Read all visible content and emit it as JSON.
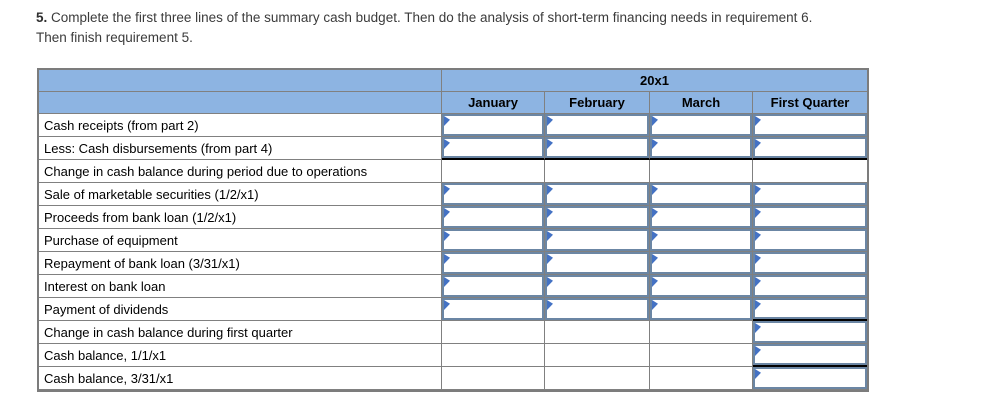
{
  "instruction": {
    "prefix": "5.",
    "line1": "Complete the first three lines of the summary cash budget. Then do the analysis of short-term financing needs in requirement 6.",
    "line2": "Then finish requirement 5."
  },
  "table": {
    "year_header": "20x1",
    "columns": [
      {
        "label": "January"
      },
      {
        "label": "February"
      },
      {
        "label": "March"
      },
      {
        "label": "First Quarter"
      }
    ],
    "rows": [
      {
        "label": "Cash receipts (from part 2)",
        "cells": [
          {
            "type": "input",
            "value": ""
          },
          {
            "type": "input",
            "value": ""
          },
          {
            "type": "input",
            "value": ""
          },
          {
            "type": "input",
            "value": ""
          }
        ]
      },
      {
        "label": "Less: Cash disbursements (from part 4)",
        "cells": [
          {
            "type": "input",
            "value": "",
            "rule_below": true
          },
          {
            "type": "input",
            "value": "",
            "rule_below": true
          },
          {
            "type": "input",
            "value": "",
            "rule_below": true
          },
          {
            "type": "input",
            "value": "",
            "rule_below": true
          }
        ]
      },
      {
        "label": "Change in cash balance during period due to operations",
        "cells": [
          {
            "type": "plain"
          },
          {
            "type": "plain"
          },
          {
            "type": "plain"
          },
          {
            "type": "plain"
          }
        ]
      },
      {
        "label": "Sale of marketable securities (1/2/x1)",
        "cells": [
          {
            "type": "input",
            "value": ""
          },
          {
            "type": "input",
            "value": ""
          },
          {
            "type": "input",
            "value": ""
          },
          {
            "type": "input",
            "value": ""
          }
        ]
      },
      {
        "label": "Proceeds from bank loan (1/2/x1)",
        "cells": [
          {
            "type": "input",
            "value": ""
          },
          {
            "type": "input",
            "value": ""
          },
          {
            "type": "input",
            "value": ""
          },
          {
            "type": "input",
            "value": ""
          }
        ]
      },
      {
        "label": "Purchase of equipment",
        "cells": [
          {
            "type": "input",
            "value": ""
          },
          {
            "type": "input",
            "value": ""
          },
          {
            "type": "input",
            "value": ""
          },
          {
            "type": "input",
            "value": ""
          }
        ]
      },
      {
        "label": "Repayment of bank loan (3/31/x1)",
        "cells": [
          {
            "type": "input",
            "value": ""
          },
          {
            "type": "input",
            "value": ""
          },
          {
            "type": "input",
            "value": ""
          },
          {
            "type": "input",
            "value": ""
          }
        ]
      },
      {
        "label": "Interest on bank loan",
        "cells": [
          {
            "type": "input",
            "value": ""
          },
          {
            "type": "input",
            "value": ""
          },
          {
            "type": "input",
            "value": ""
          },
          {
            "type": "input",
            "value": ""
          }
        ]
      },
      {
        "label": "Payment of dividends",
        "cells": [
          {
            "type": "input",
            "value": ""
          },
          {
            "type": "input",
            "value": ""
          },
          {
            "type": "input",
            "value": ""
          },
          {
            "type": "input",
            "value": "",
            "rule_below": true
          }
        ]
      },
      {
        "label": "Change in cash balance during first quarter",
        "cells": [
          {
            "type": "plain"
          },
          {
            "type": "plain"
          },
          {
            "type": "plain"
          },
          {
            "type": "input",
            "value": ""
          }
        ]
      },
      {
        "label": "Cash balance, 1/1/x1",
        "cells": [
          {
            "type": "plain"
          },
          {
            "type": "plain"
          },
          {
            "type": "plain"
          },
          {
            "type": "input",
            "value": "",
            "rule_below": true
          }
        ]
      },
      {
        "label": "Cash balance, 3/31/x1",
        "cells": [
          {
            "type": "plain"
          },
          {
            "type": "plain"
          },
          {
            "type": "plain"
          },
          {
            "type": "input",
            "value": ""
          }
        ]
      }
    ]
  },
  "colors": {
    "header_fill": "#8db4e2",
    "grid_line": "#808080",
    "input_border": "#6b86a4",
    "input_marker": "#4472c4",
    "subtotal_rule": "#000000",
    "instruction_text": "#3b3b3b"
  }
}
